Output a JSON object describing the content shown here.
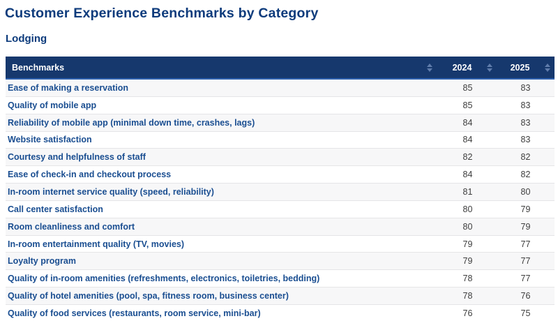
{
  "page": {
    "title": "Customer Experience Benchmarks by Category",
    "category": "Lodging"
  },
  "table": {
    "columns": [
      {
        "key": "benchmark",
        "label": "Benchmarks",
        "sort_icon": "sort-updown-icon"
      },
      {
        "key": "y2024",
        "label": "2024",
        "sort_icon": "sort-updown-icon"
      },
      {
        "key": "y2025",
        "label": "2025",
        "sort_icon": "sort-updown-icon"
      }
    ],
    "rows": [
      {
        "benchmark": "Ease of making a reservation",
        "y2024": 85,
        "y2025": 83
      },
      {
        "benchmark": "Quality of mobile app",
        "y2024": 85,
        "y2025": 83
      },
      {
        "benchmark": "Reliability of mobile app (minimal down time, crashes, lags)",
        "y2024": 84,
        "y2025": 83
      },
      {
        "benchmark": "Website satisfaction",
        "y2024": 84,
        "y2025": 83
      },
      {
        "benchmark": "Courtesy and helpfulness of staff",
        "y2024": 82,
        "y2025": 82
      },
      {
        "benchmark": "Ease of check-in and checkout process",
        "y2024": 84,
        "y2025": 82
      },
      {
        "benchmark": "In-room internet service quality (speed, reliability)",
        "y2024": 81,
        "y2025": 80
      },
      {
        "benchmark": "Call center satisfaction",
        "y2024": 80,
        "y2025": 79
      },
      {
        "benchmark": "Room cleanliness and comfort",
        "y2024": 80,
        "y2025": 79
      },
      {
        "benchmark": "In-room entertainment quality (TV, movies)",
        "y2024": 79,
        "y2025": 77
      },
      {
        "benchmark": "Loyalty program",
        "y2024": 79,
        "y2025": 77
      },
      {
        "benchmark": "Quality of in-room amenities (refreshments, electronics, toiletries, bedding)",
        "y2024": 78,
        "y2025": 77
      },
      {
        "benchmark": "Quality of hotel amenities (pool, spa, fitness room, business center)",
        "y2024": 78,
        "y2025": 76
      },
      {
        "benchmark": "Quality of food services (restaurants, room service, mini-bar)",
        "y2024": 76,
        "y2025": 75
      }
    ]
  },
  "colors": {
    "title_text": "#0d3b7c",
    "header_bg": "#16386d",
    "header_accent_border": "#2e60ae",
    "header_text": "#ffffff",
    "row_label_text": "#1a4e91",
    "value_text": "#3d3d3d",
    "sort_icon": "#5f7cab",
    "alt_row_bg": "#f7f7f8",
    "row_border": "#e5e5e7"
  }
}
